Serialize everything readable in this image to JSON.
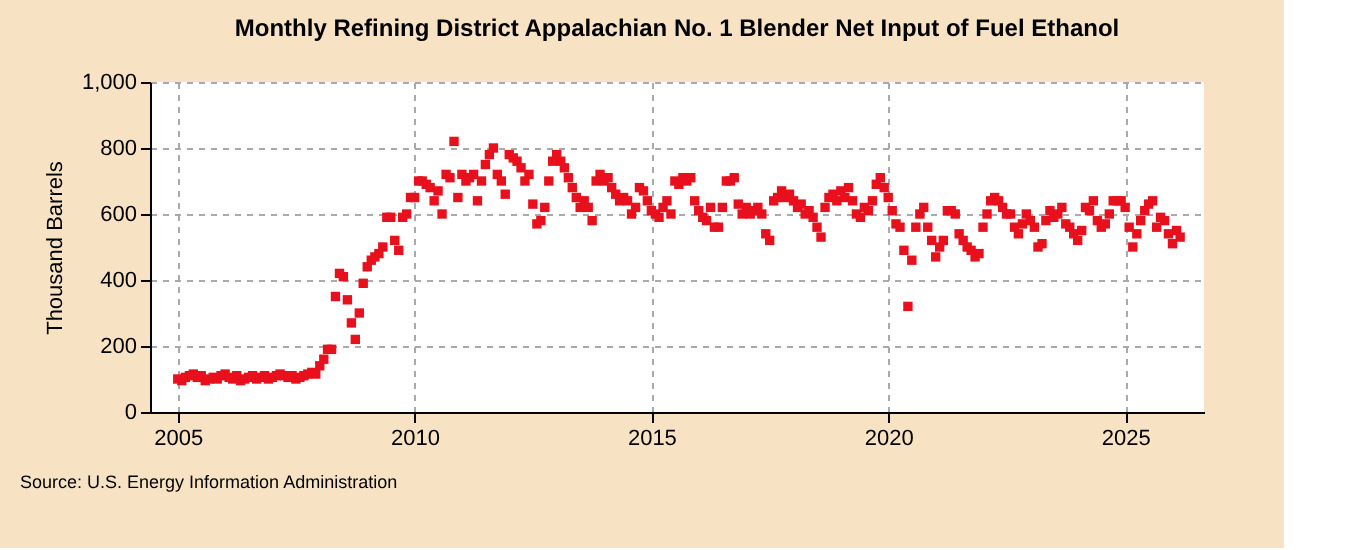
{
  "chart_data": {
    "type": "scatter",
    "title": "Monthly Refining District Appalachian No. 1 Blender Net Input of Fuel Ethanol",
    "ylabel": "Thousand Barrels",
    "annotations": [
      "Source: U.S. Energy Information Administration"
    ],
    "x": [
      "2005-01",
      "2005-02",
      "2005-03",
      "2005-04",
      "2005-05",
      "2005-06",
      "2005-07",
      "2005-08",
      "2005-09",
      "2005-10",
      "2005-11",
      "2005-12",
      "2006-01",
      "2006-02",
      "2006-03",
      "2006-04",
      "2006-05",
      "2006-06",
      "2006-07",
      "2006-08",
      "2006-09",
      "2006-10",
      "2006-11",
      "2006-12",
      "2007-01",
      "2007-02",
      "2007-03",
      "2007-04",
      "2007-05",
      "2007-06",
      "2007-07",
      "2007-08",
      "2007-09",
      "2007-10",
      "2007-11",
      "2007-12",
      "2008-01",
      "2008-02",
      "2008-03",
      "2008-04",
      "2008-05",
      "2008-06",
      "2008-07",
      "2008-08",
      "2008-09",
      "2008-10",
      "2008-11",
      "2008-12",
      "2009-01",
      "2009-02",
      "2009-03",
      "2009-04",
      "2009-05",
      "2009-06",
      "2009-07",
      "2009-08",
      "2009-09",
      "2009-10",
      "2009-11",
      "2009-12",
      "2010-01",
      "2010-02",
      "2010-03",
      "2010-04",
      "2010-05",
      "2010-06",
      "2010-07",
      "2010-08",
      "2010-09",
      "2010-10",
      "2010-11",
      "2010-12",
      "2011-01",
      "2011-02",
      "2011-03",
      "2011-04",
      "2011-05",
      "2011-06",
      "2011-07",
      "2011-08",
      "2011-09",
      "2011-10",
      "2011-11",
      "2011-12",
      "2012-01",
      "2012-02",
      "2012-03",
      "2012-04",
      "2012-05",
      "2012-06",
      "2012-07",
      "2012-08",
      "2012-09",
      "2012-10",
      "2012-11",
      "2012-12",
      "2013-01",
      "2013-02",
      "2013-03",
      "2013-04",
      "2013-05",
      "2013-06",
      "2013-07",
      "2013-08",
      "2013-09",
      "2013-10",
      "2013-11",
      "2013-12",
      "2014-01",
      "2014-02",
      "2014-03",
      "2014-04",
      "2014-05",
      "2014-06",
      "2014-07",
      "2014-08",
      "2014-09",
      "2014-10",
      "2014-11",
      "2014-12",
      "2015-01",
      "2015-02",
      "2015-03",
      "2015-04",
      "2015-05",
      "2015-06",
      "2015-07",
      "2015-08",
      "2015-09",
      "2015-10",
      "2015-11",
      "2015-12",
      "2016-01",
      "2016-02",
      "2016-03",
      "2016-04",
      "2016-05",
      "2016-06",
      "2016-07",
      "2016-08",
      "2016-09",
      "2016-10",
      "2016-11",
      "2016-12",
      "2017-01",
      "2017-02",
      "2017-03",
      "2017-04",
      "2017-05",
      "2017-06",
      "2017-07",
      "2017-08",
      "2017-09",
      "2017-10",
      "2017-11",
      "2017-12",
      "2018-01",
      "2018-02",
      "2018-03",
      "2018-04",
      "2018-05",
      "2018-06",
      "2018-07",
      "2018-08",
      "2018-09",
      "2018-10",
      "2018-11",
      "2018-12",
      "2019-01",
      "2019-02",
      "2019-03",
      "2019-04",
      "2019-05",
      "2019-06",
      "2019-07",
      "2019-08",
      "2019-09",
      "2019-10",
      "2019-11",
      "2019-12",
      "2020-01",
      "2020-02",
      "2020-03",
      "2020-04",
      "2020-05",
      "2020-06",
      "2020-07",
      "2020-08",
      "2020-09",
      "2020-10",
      "2020-11",
      "2020-12",
      "2021-01",
      "2021-02",
      "2021-03",
      "2021-04",
      "2021-05",
      "2021-06",
      "2021-07",
      "2021-08",
      "2021-09",
      "2021-10",
      "2021-11",
      "2021-12",
      "2022-01",
      "2022-02",
      "2022-03",
      "2022-04",
      "2022-05",
      "2022-06",
      "2022-07",
      "2022-08",
      "2022-09",
      "2022-10",
      "2022-11",
      "2022-12",
      "2023-01",
      "2023-02",
      "2023-03",
      "2023-04",
      "2023-05",
      "2023-06",
      "2023-07",
      "2023-08",
      "2023-09",
      "2023-10",
      "2023-11",
      "2023-12",
      "2024-01",
      "2024-02",
      "2024-03",
      "2024-04",
      "2024-05",
      "2024-06",
      "2024-07",
      "2024-08",
      "2024-09",
      "2024-10",
      "2024-11",
      "2024-12",
      "2025-01",
      "2025-02",
      "2025-03",
      "2025-04",
      "2025-05",
      "2025-06",
      "2025-07",
      "2025-08",
      "2025-09",
      "2025-10",
      "2025-11",
      "2025-12",
      "2026-01",
      "2026-02",
      "2026-03"
    ],
    "series": [
      {
        "color": "#e8101c",
        "values": [
          100,
          95,
          105,
          110,
          115,
          105,
          110,
          95,
          100,
          105,
          100,
          110,
          115,
          105,
          100,
          110,
          95,
          100,
          105,
          110,
          100,
          105,
          110,
          100,
          105,
          110,
          115,
          110,
          105,
          110,
          100,
          105,
          110,
          115,
          120,
          115,
          140,
          160,
          190,
          190,
          350,
          420,
          410,
          340,
          270,
          220,
          300,
          390,
          440,
          460,
          470,
          480,
          500,
          590,
          590,
          520,
          490,
          590,
          600,
          650,
          650,
          700,
          700,
          690,
          680,
          640,
          670,
          600,
          720,
          710,
          820,
          650,
          720,
          700,
          710,
          720,
          640,
          700,
          750,
          780,
          800,
          720,
          700,
          660,
          780,
          770,
          760,
          740,
          700,
          720,
          630,
          570,
          580,
          620,
          700,
          760,
          780,
          760,
          740,
          710,
          680,
          650,
          620,
          640,
          620,
          580,
          700,
          720,
          700,
          710,
          680,
          660,
          640,
          650,
          640,
          600,
          620,
          680,
          670,
          640,
          610,
          600,
          590,
          620,
          640,
          600,
          700,
          690,
          710,
          700,
          710,
          640,
          610,
          590,
          580,
          620,
          560,
          560,
          620,
          700,
          700,
          710,
          630,
          600,
          620,
          600,
          610,
          620,
          600,
          540,
          520,
          640,
          650,
          670,
          650,
          660,
          640,
          620,
          630,
          600,
          610,
          590,
          560,
          530,
          620,
          650,
          660,
          640,
          670,
          650,
          680,
          640,
          600,
          590,
          620,
          610,
          640,
          690,
          710,
          680,
          650,
          610,
          570,
          560,
          490,
          320,
          460,
          560,
          600,
          620,
          560,
          520,
          470,
          500,
          520,
          610,
          610,
          600,
          540,
          520,
          500,
          490,
          470,
          480,
          560,
          600,
          640,
          650,
          640,
          620,
          600,
          600,
          560,
          540,
          570,
          600,
          580,
          560,
          500,
          510,
          580,
          610,
          590,
          600,
          620,
          570,
          560,
          540,
          520,
          550,
          620,
          610,
          640,
          580,
          560,
          570,
          600,
          640,
          640,
          640,
          620,
          560,
          500,
          540,
          580,
          610,
          630,
          640,
          560,
          590,
          580,
          540,
          510,
          550,
          530
        ]
      }
    ],
    "xlim": [
      "2004-06",
      "2026-09"
    ],
    "xticks": [
      {
        "value": "2005-01",
        "label": "2005"
      },
      {
        "value": "2010-01",
        "label": "2010"
      },
      {
        "value": "2015-01",
        "label": "2015"
      },
      {
        "value": "2020-01",
        "label": "2020"
      },
      {
        "value": "2025-01",
        "label": "2025"
      }
    ],
    "ylim": [
      0,
      1000
    ],
    "yticks": [
      0,
      200,
      400,
      600,
      800,
      {
        "value": 1000,
        "label": "1,000"
      }
    ],
    "grid": true,
    "marker": "square",
    "legend": false
  }
}
